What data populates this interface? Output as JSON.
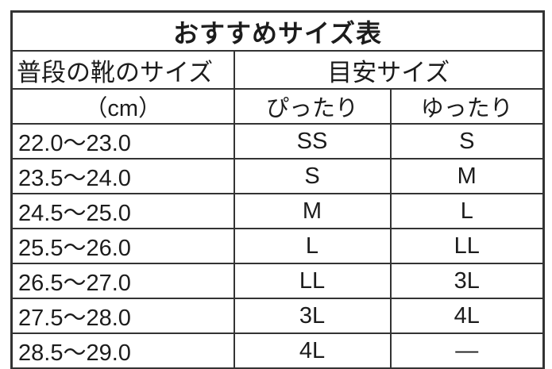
{
  "title": "おすすめサイズ表",
  "table": {
    "col1_header": "普段の靴のサイズ",
    "col23_header": "目安サイズ",
    "sub_headers": {
      "col1": "（cm）",
      "col2": "ぴったり",
      "col3": "ゆったり"
    },
    "rows": [
      {
        "size_cm": "22.0〜23.0",
        "fit": "SS",
        "loose": "S"
      },
      {
        "size_cm": "23.5〜24.0",
        "fit": "S",
        "loose": "M"
      },
      {
        "size_cm": "24.5〜25.0",
        "fit": "M",
        "loose": "L"
      },
      {
        "size_cm": "25.5〜26.0",
        "fit": "L",
        "loose": "LL"
      },
      {
        "size_cm": "26.5〜27.0",
        "fit": "LL",
        "loose": "3L"
      },
      {
        "size_cm": "27.5〜28.0",
        "fit": "3L",
        "loose": "4L"
      },
      {
        "size_cm": "28.5〜29.0",
        "fit": "4L",
        "loose": "—"
      }
    ]
  },
  "colors": {
    "border": "#333333",
    "text": "#1c1c1c",
    "background": "#ffffff"
  },
  "chart_data": {
    "type": "table",
    "title": "おすすめサイズ表",
    "column_groups": [
      {
        "label": "普段の靴のサイズ",
        "sub": [
          "（cm）"
        ]
      },
      {
        "label": "目安サイズ",
        "sub": [
          "ぴったり",
          "ゆったり"
        ]
      }
    ],
    "rows": [
      [
        "22.0〜23.0",
        "SS",
        "S"
      ],
      [
        "23.5〜24.0",
        "S",
        "M"
      ],
      [
        "24.5〜25.0",
        "M",
        "L"
      ],
      [
        "25.5〜26.0",
        "L",
        "LL"
      ],
      [
        "26.5〜27.0",
        "LL",
        "3L"
      ],
      [
        "27.5〜28.0",
        "3L",
        "4L"
      ],
      [
        "28.5〜29.0",
        "4L",
        "—"
      ]
    ]
  }
}
